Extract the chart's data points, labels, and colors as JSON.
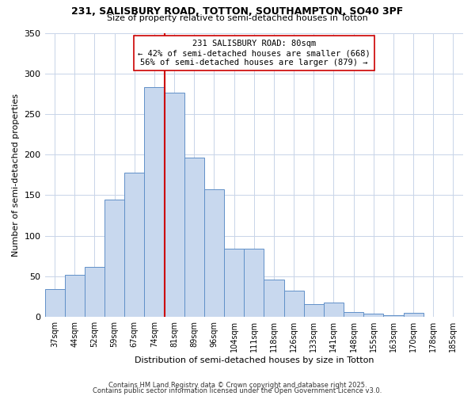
{
  "title1": "231, SALISBURY ROAD, TOTTON, SOUTHAMPTON, SO40 3PF",
  "title2": "Size of property relative to semi-detached houses in Totton",
  "xlabel": "Distribution of semi-detached houses by size in Totton",
  "ylabel": "Number of semi-detached properties",
  "categories": [
    "37sqm",
    "44sqm",
    "52sqm",
    "59sqm",
    "67sqm",
    "74sqm",
    "81sqm",
    "89sqm",
    "96sqm",
    "104sqm",
    "111sqm",
    "118sqm",
    "126sqm",
    "133sqm",
    "141sqm",
    "148sqm",
    "155sqm",
    "163sqm",
    "170sqm",
    "178sqm",
    "185sqm"
  ],
  "values": [
    34,
    52,
    62,
    145,
    178,
    283,
    276,
    196,
    157,
    84,
    84,
    46,
    32,
    16,
    18,
    6,
    4,
    2,
    5,
    0,
    0
  ],
  "bar_color": "#c8d8ee",
  "bar_edge_color": "#6090c8",
  "grid_color": "#c8d4e8",
  "bg_color": "#ffffff",
  "plot_bg_color": "#ffffff",
  "vline_x_idx": 6,
  "vline_color": "#cc0000",
  "annotation_text": "231 SALISBURY ROAD: 80sqm\n← 42% of semi-detached houses are smaller (668)\n56% of semi-detached houses are larger (879) →",
  "annotation_box_color": "#ffffff",
  "annotation_box_edge": "#cc0000",
  "ylim": [
    0,
    350
  ],
  "yticks": [
    0,
    50,
    100,
    150,
    200,
    250,
    300,
    350
  ],
  "footer_line1": "Contains HM Land Registry data © Crown copyright and database right 2025.",
  "footer_line2": "Contains public sector information licensed under the Open Government Licence v3.0."
}
